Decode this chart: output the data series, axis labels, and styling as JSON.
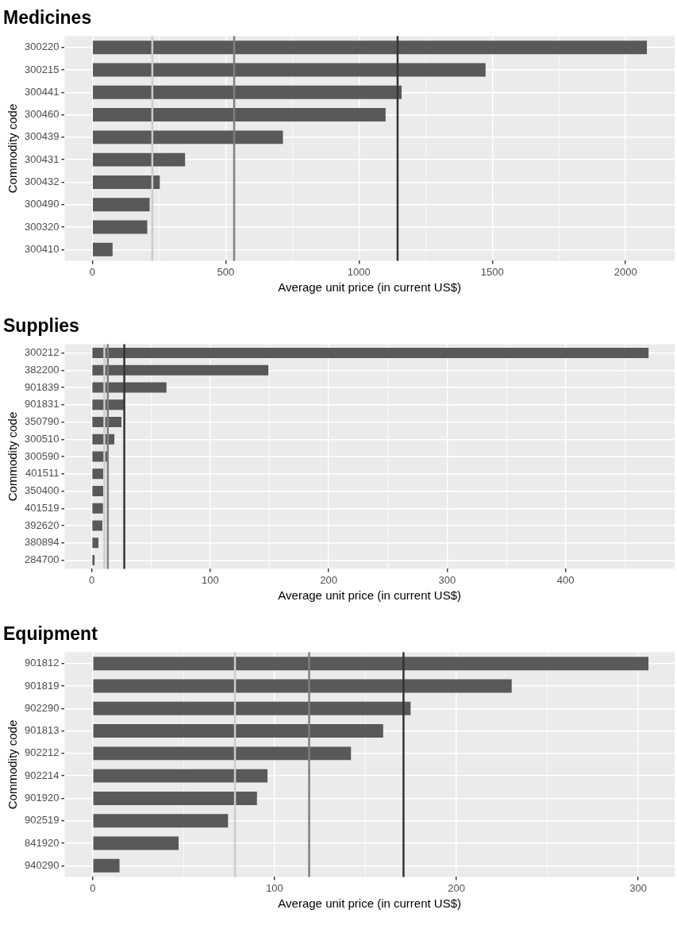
{
  "chart_data": [
    {
      "type": "bar",
      "orientation": "horizontal",
      "title": "Medicines",
      "xlabel": "Average unit price (in current US$)",
      "ylabel": "Commodity code",
      "categories": [
        "300220",
        "300215",
        "300441",
        "300460",
        "300439",
        "300431",
        "300432",
        "300490",
        "300320",
        "300410"
      ],
      "values": [
        2080,
        1475,
        1160,
        1100,
        715,
        348,
        253,
        215,
        206,
        76
      ],
      "color": "#595959",
      "xlim": [
        -104,
        2184
      ],
      "xticks": [
        0,
        {
          "value": 250,
          "label": null
        },
        500,
        {
          "value": 750,
          "label": null
        },
        1000,
        {
          "value": 1250,
          "label": null
        },
        1500,
        {
          "value": 1750,
          "label": null
        },
        2000
      ],
      "grid": true,
      "ref_lines": [
        {
          "axis": "x",
          "value": 225,
          "color": "#cccccc"
        },
        {
          "axis": "x",
          "value": 532,
          "color": "#808080"
        },
        {
          "axis": "x",
          "value": 1145,
          "color": "#333333"
        }
      ]
    },
    {
      "type": "bar",
      "orientation": "horizontal",
      "title": "Supplies",
      "xlabel": "Average unit price (in current US$)",
      "ylabel": "Commodity code",
      "categories": [
        "300212",
        "382200",
        "901839",
        "901831",
        "350790",
        "300510",
        "300590",
        "401511",
        "350400",
        "401519",
        "392620",
        "380894",
        "284700"
      ],
      "values": [
        470,
        149,
        63,
        27,
        25,
        19,
        14,
        9.6,
        9.6,
        9.4,
        8.9,
        5.6,
        2.3
      ],
      "color": "#595959",
      "xlim": [
        -23,
        492
      ],
      "xticks": [
        0,
        {
          "value": 50,
          "label": null
        },
        100,
        {
          "value": 150,
          "label": null
        },
        200,
        {
          "value": 250,
          "label": null
        },
        300,
        {
          "value": 350,
          "label": null
        },
        400,
        {
          "value": 450,
          "label": null
        }
      ],
      "grid": true,
      "ref_lines": [
        {
          "axis": "x",
          "value": 10.6,
          "color": "#cccccc"
        },
        {
          "axis": "x",
          "value": 13.5,
          "color": "#808080"
        },
        {
          "axis": "x",
          "value": 27.4,
          "color": "#333333"
        }
      ]
    },
    {
      "type": "bar",
      "orientation": "horizontal",
      "title": "Equipment",
      "xlabel": "Average unit price (in current US$)",
      "ylabel": "Commodity code",
      "categories": [
        "901812",
        "901819",
        "902290",
        "901813",
        "902212",
        "902214",
        "901920",
        "902519",
        "841920",
        "940290"
      ],
      "values": [
        305.6,
        230.4,
        174.8,
        159.7,
        142,
        96.1,
        90.3,
        74.4,
        47.2,
        14.7
      ],
      "color": "#595959",
      "xlim": [
        -15.5,
        320
      ],
      "xticks": [
        0,
        {
          "value": 50,
          "label": null
        },
        100,
        {
          "value": 150,
          "label": null
        },
        200,
        {
          "value": 250,
          "label": null
        },
        300
      ],
      "grid": true,
      "ref_lines": [
        {
          "axis": "x",
          "value": 78.2,
          "color": "#cccccc"
        },
        {
          "axis": "x",
          "value": 119,
          "color": "#808080"
        },
        {
          "axis": "x",
          "value": 170.9,
          "color": "#333333"
        }
      ]
    }
  ]
}
